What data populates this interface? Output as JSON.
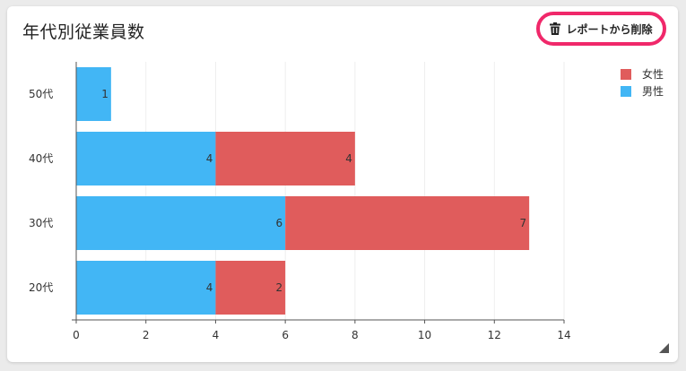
{
  "card": {
    "title": "年代別従業員数",
    "remove_button_label": "レポートから削除",
    "remove_icon": "trash-icon"
  },
  "colors": {
    "male": "#42b6f5",
    "female": "#e05c5c",
    "highlight": "#f0286a",
    "grid": "#eeeeee",
    "axis": "#555555"
  },
  "chart_data": {
    "type": "bar",
    "orientation": "horizontal",
    "stacked": true,
    "categories": [
      "50代",
      "40代",
      "30代",
      "20代"
    ],
    "series": [
      {
        "name": "男性",
        "values": [
          1,
          4,
          6,
          4
        ],
        "color_key": "male"
      },
      {
        "name": "女性",
        "values": [
          0,
          4,
          7,
          2
        ],
        "color_key": "female"
      }
    ],
    "xlim": [
      0,
      14
    ],
    "xticks": [
      0,
      2,
      4,
      6,
      8,
      10,
      12,
      14
    ],
    "legend": [
      {
        "name": "女性",
        "color_key": "female"
      },
      {
        "name": "男性",
        "color_key": "male"
      }
    ],
    "legend_position": "top-right",
    "grid": true
  }
}
